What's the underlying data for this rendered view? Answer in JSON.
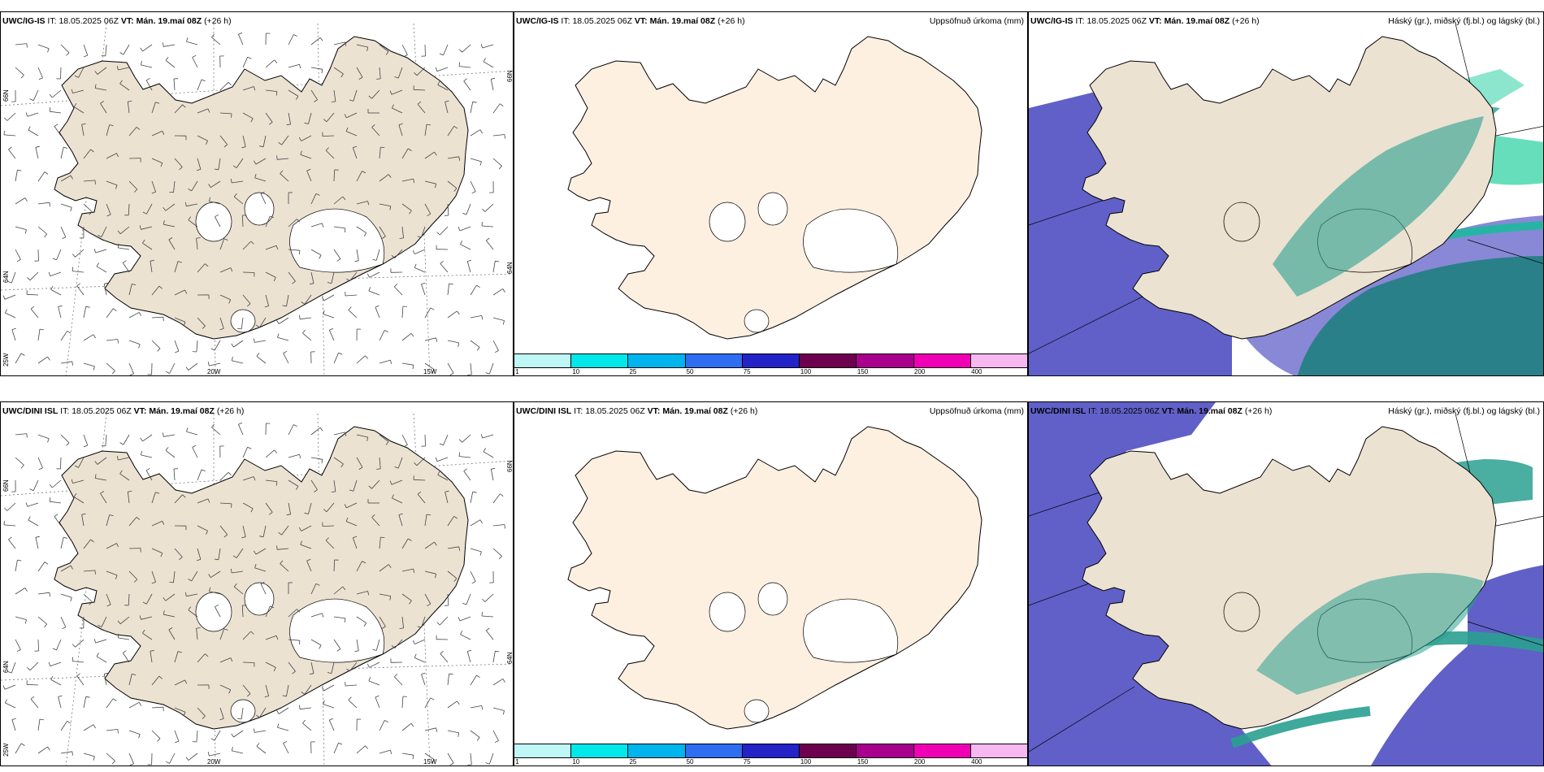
{
  "rows": [
    {
      "model": "UWC/IG-IS",
      "it_label": "IT:",
      "it_value": "18.05.2025 06Z",
      "vt_label": "VT:",
      "vt_value": "Mán. 19.maí 08Z",
      "lead": "(+26 h)"
    },
    {
      "model": "UWC/DINI ISL",
      "it_label": "IT:",
      "it_value": "18.05.2025 06Z",
      "vt_label": "VT:",
      "vt_value": "Mán. 19.maí 08Z",
      "lead": "(+26 h)"
    }
  ],
  "precip_title": "Uppsöfnuð úrkoma (mm)",
  "cloud_title": "Háský (gr.), miðský (fj.bl.) og lágský (bl.)",
  "grid_labels": {
    "lat_66": "66N",
    "lat_64": "64N",
    "lon_25": "25W",
    "lon_20": "20W",
    "lon_15": "15W"
  },
  "precip_legend": {
    "ticks": [
      "1",
      "10",
      "25",
      "50",
      "75",
      "100",
      "150",
      "200",
      "400"
    ],
    "colors": [
      "#bff7f7",
      "#00e8ea",
      "#00b4ee",
      "#2f6ef0",
      "#2323c8",
      "#6e0050",
      "#a8008c",
      "#f000b4",
      "#f7b8f2"
    ]
  },
  "colors": {
    "land_brown": "#ece2d2",
    "land_cream": "#fdf0e1",
    "cloud_high": "#6060c8",
    "cloud_mid": "#2aa090",
    "cloud_low": "#00c890"
  }
}
